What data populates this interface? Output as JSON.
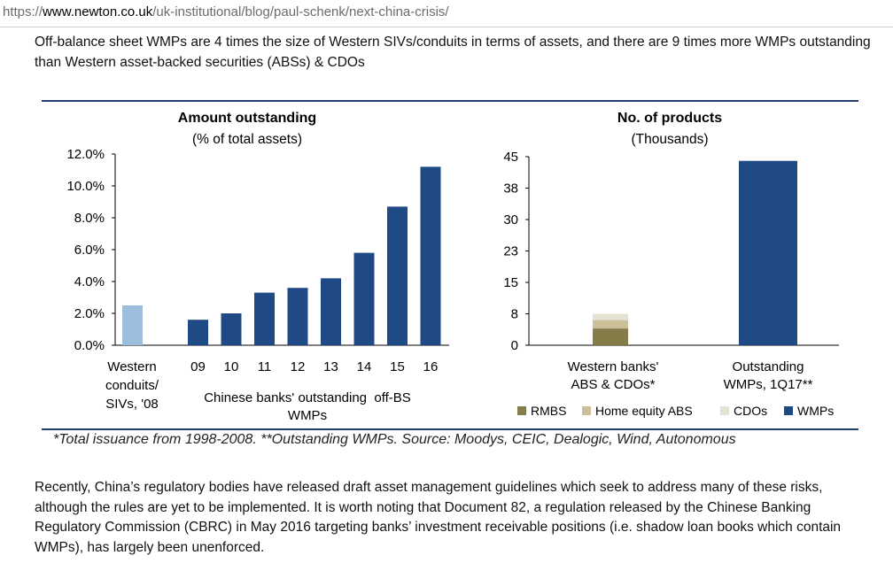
{
  "browser": {
    "url_scheme": "https://",
    "url_host": "www.newton.co.uk",
    "url_path": "/uk-institutional/blog/paul-schenk/next-china-crisis/"
  },
  "article": {
    "intro": "Off-balance sheet WMPs are 4 times the size of Western SIVs/conduits in terms of assets, and there are 9 times more WMPs outstanding than Western asset-backed securities (ABSs) & CDOs",
    "body": "Recently, China’s regulatory bodies have released draft asset management guidelines which seek to address many of these risks, although the rules are yet to be implemented. It is worth noting that Document 82, a regulation released by the Chinese Banking Regulatory Commission (CBRC) in May 2016 targeting banks’ investment receivable positions (i.e. shadow loan books which contain WMPs), has largely been unenforced."
  },
  "figure": {
    "footnote": "*Total issuance from 1998-2008. **Outstanding WMPs. Source: Moodys, CEIC, Dealogic, Wind, Autonomous"
  },
  "chart_data": [
    {
      "type": "bar",
      "title": "Amount outstanding",
      "subtitle": "(% of total assets)",
      "ylim": [
        0,
        12
      ],
      "yticks": [
        "0.0%",
        "2.0%",
        "4.0%",
        "6.0%",
        "8.0%",
        "10.0%",
        "12.0%"
      ],
      "grid": false,
      "colors": {
        "western": "#9dbddd",
        "chinese": "#1f4a85"
      },
      "western_label_lines": [
        "Western",
        "conduits/",
        "SIVs, '08"
      ],
      "western_value": 2.5,
      "categories": [
        "09",
        "10",
        "11",
        "12",
        "13",
        "14",
        "15",
        "16"
      ],
      "values": [
        1.6,
        2.0,
        3.3,
        3.6,
        4.2,
        5.8,
        8.7,
        11.2
      ],
      "group_label_lines": [
        "Chinese banks' outstanding  off-BS",
        "WMPs"
      ]
    },
    {
      "type": "bar",
      "stacked": true,
      "title": "No. of products",
      "subtitle": "(Thousands)",
      "ylim": [
        0,
        45
      ],
      "yticks": [
        "0",
        "8",
        "15",
        "23",
        "30",
        "38",
        "45"
      ],
      "grid": false,
      "legend_position": "bottom",
      "categories": [
        [
          "Western banks'",
          "ABS & CDOs*"
        ],
        [
          "Outstanding",
          "WMPs, 1Q17**"
        ]
      ],
      "series": [
        {
          "name": "RMBS",
          "color": "#857c4a",
          "values": [
            4,
            0
          ]
        },
        {
          "name": "Home equity ABS",
          "color": "#cbc09a",
          "values": [
            2,
            0
          ]
        },
        {
          "name": "CDOs",
          "color": "#e5e1d3",
          "values": [
            1.5,
            0
          ]
        },
        {
          "name": "WMPs",
          "color": "#1f4a85",
          "values": [
            0,
            44
          ]
        }
      ]
    }
  ]
}
